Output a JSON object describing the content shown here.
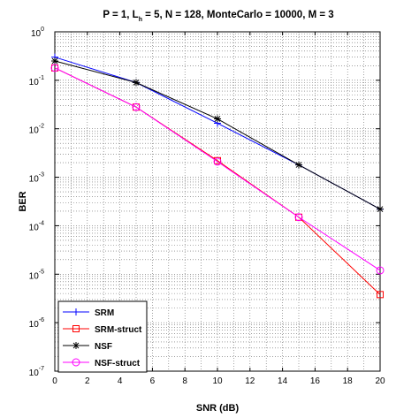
{
  "chart_data": {
    "type": "line",
    "title": "P = 1, L_h = 5, N = 128, MonteCarlo = 10000, M = 3",
    "title_parts": {
      "prefix": "P = 1, L",
      "subscript": "h",
      "suffix": " = 5, N = 128, MonteCarlo = 10000, M = 3"
    },
    "xlabel": "SNR (dB)",
    "ylabel": "BER",
    "xlim": [
      0,
      20
    ],
    "ylim": [
      1e-07,
      1
    ],
    "yscale": "log",
    "grid": true,
    "x_ticks": [
      "0",
      "2",
      "4",
      "6",
      "8",
      "10",
      "12",
      "14",
      "16",
      "18",
      "20"
    ],
    "y_ticks": [
      {
        "base": "10",
        "exp": "-7"
      },
      {
        "base": "10",
        "exp": "-6"
      },
      {
        "base": "10",
        "exp": "-5"
      },
      {
        "base": "10",
        "exp": "-4"
      },
      {
        "base": "10",
        "exp": "-3"
      },
      {
        "base": "10",
        "exp": "-2"
      },
      {
        "base": "10",
        "exp": "-1"
      },
      {
        "base": "10",
        "exp": "0"
      }
    ],
    "legend_position": "bottom-left",
    "x": [
      0,
      5,
      10,
      15,
      20
    ],
    "series": [
      {
        "name": "SRM",
        "color": "#0000ff",
        "marker": "plus",
        "values": [
          0.3,
          0.09,
          0.013,
          0.0018,
          0.00022
        ]
      },
      {
        "name": "SRM-struct",
        "color": "#ff0000",
        "marker": "square",
        "values": [
          0.18,
          0.028,
          0.0022,
          0.00015,
          3.8e-06
        ]
      },
      {
        "name": "NSF",
        "color": "#000000",
        "marker": "asterisk",
        "values": [
          0.25,
          0.09,
          0.016,
          0.0018,
          0.00022
        ]
      },
      {
        "name": "NSF-struct",
        "color": "#ff00ff",
        "marker": "circle",
        "values": [
          0.18,
          0.028,
          0.0021,
          0.00015,
          1.2e-05
        ]
      }
    ]
  }
}
